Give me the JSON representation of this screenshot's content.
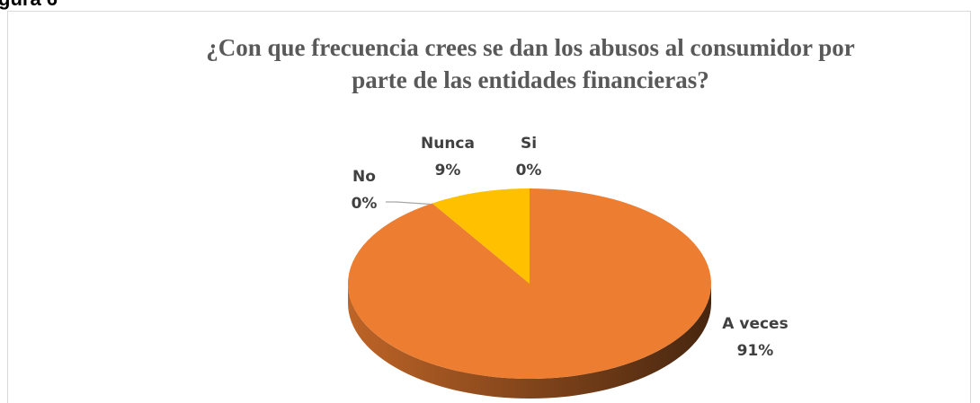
{
  "figure_label": "gura 6",
  "chart_data": {
    "type": "pie",
    "title": [
      "¿Con que frecuencia crees se dan los abusos al consumidor por",
      "parte de las entidades financieras?"
    ],
    "categories": [
      "A veces",
      "No",
      "Nunca",
      "Si"
    ],
    "values": [
      91,
      0,
      9,
      0
    ],
    "value_labels": [
      "91%",
      "0%",
      "9%",
      "0%"
    ],
    "colors": [
      "#ed7d31",
      "#a5a5a5",
      "#ffc000",
      "#4472c4"
    ]
  }
}
